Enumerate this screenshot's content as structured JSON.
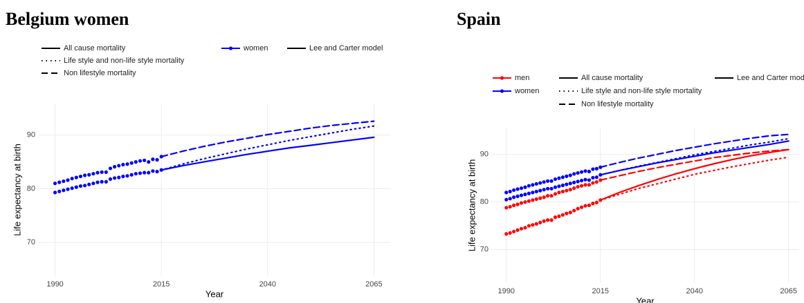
{
  "chart_data": [
    {
      "type": "line",
      "title": "Belgium women",
      "x_label": "Year",
      "y_label": "Life expectancy at birth",
      "xlim": [
        1986,
        2069
      ],
      "xticks": [
        1990,
        2015,
        2040,
        2065
      ],
      "ylim": [
        63.7,
        95.9
      ],
      "yticks": [
        70,
        80,
        90
      ],
      "grid": true,
      "x_observed": [
        1990,
        1991,
        1992,
        1993,
        1994,
        1995,
        1996,
        1997,
        1998,
        1999,
        2000,
        2001,
        2002,
        2003,
        2004,
        2005,
        2006,
        2007,
        2008,
        2009,
        2010,
        2011,
        2012,
        2013,
        2014,
        2015
      ],
      "x_projection": [
        2015,
        2020,
        2025,
        2030,
        2035,
        2040,
        2045,
        2050,
        2055,
        2060,
        2065
      ],
      "legend": {
        "linetypes": [
          {
            "name": "All cause mortality",
            "linetype": "solid"
          },
          {
            "name": "Life style and non-life style mortality",
            "linetype": "dotted"
          },
          {
            "name": "Non lifestyle mortality",
            "linetype": "dashed"
          }
        ],
        "colors": [
          {
            "name": "women",
            "color": "#0000ff"
          }
        ],
        "models": [
          {
            "name": "Lee and Carter model",
            "linetype": "solid"
          }
        ]
      },
      "series": [
        {
          "period": "observed",
          "linetype": "points",
          "color": "#0000ff",
          "values": [
            79.3,
            79.5,
            79.7,
            79.9,
            80.1,
            80.3,
            80.5,
            80.6,
            80.8,
            81.0,
            81.2,
            81.3,
            81.3,
            81.8,
            82.0,
            82.1,
            82.3,
            82.4,
            82.6,
            82.8,
            82.9,
            83.0,
            83.0,
            83.3,
            83.2,
            83.5
          ]
        },
        {
          "period": "observed",
          "linetype": "points",
          "color": "#0000ff",
          "values": [
            81.0,
            81.2,
            81.4,
            81.6,
            81.9,
            82.1,
            82.3,
            82.5,
            82.6,
            82.8,
            83.0,
            83.1,
            83.1,
            83.8,
            84.1,
            84.3,
            84.5,
            84.6,
            84.8,
            85.0,
            85.2,
            85.3,
            85.0,
            85.5,
            85.4,
            86.0
          ]
        },
        {
          "period": "projection",
          "linetype": "solid",
          "color": "#0000ff",
          "values": [
            83.5,
            84.3,
            85.0,
            85.7,
            86.4,
            87.0,
            87.6,
            88.1,
            88.6,
            89.1,
            89.6
          ]
        },
        {
          "period": "projection",
          "linetype": "dotted",
          "color": "#0000ff",
          "values": [
            83.5,
            84.6,
            85.6,
            86.5,
            87.4,
            88.2,
            89.0,
            89.7,
            90.4,
            91.1,
            91.7
          ]
        },
        {
          "period": "projection",
          "linetype": "dashed",
          "color": "#0000ff",
          "values": [
            86.0,
            87.0,
            87.9,
            88.7,
            89.4,
            90.1,
            90.7,
            91.3,
            91.8,
            92.2,
            92.6
          ]
        }
      ]
    },
    {
      "type": "line",
      "title": "Spain",
      "x_label": "Year",
      "y_label": "Life expectancy at birth",
      "xlim": [
        1986,
        2067.8
      ],
      "xticks": [
        1990,
        2015,
        2040,
        2065
      ],
      "ylim": [
        63,
        95.6
      ],
      "yticks": [
        70,
        80,
        90
      ],
      "grid": true,
      "x_observed": [
        1990,
        1991,
        1992,
        1993,
        1994,
        1995,
        1996,
        1997,
        1998,
        1999,
        2000,
        2001,
        2002,
        2003,
        2004,
        2005,
        2006,
        2007,
        2008,
        2009,
        2010,
        2011,
        2012,
        2013,
        2014,
        2015
      ],
      "x_projection": [
        2015,
        2020,
        2025,
        2030,
        2035,
        2040,
        2045,
        2050,
        2055,
        2060,
        2065
      ],
      "legend": {
        "colors": [
          {
            "name": "men",
            "color": "#ff0000"
          },
          {
            "name": "women",
            "color": "#0000ff"
          }
        ],
        "linetypes": [
          {
            "name": "All cause mortality",
            "linetype": "solid"
          },
          {
            "name": "Life style and non-life style mortality",
            "linetype": "dotted"
          },
          {
            "name": "Non lifestyle mortality",
            "linetype": "dashed"
          }
        ],
        "models": [
          {
            "name": "Lee and Carter mode",
            "linetype": "solid"
          }
        ]
      },
      "series": [
        {
          "period": "observed",
          "linetype": "points",
          "color": "#0000ff",
          "values": [
            80.5,
            80.7,
            81.0,
            81.2,
            81.4,
            81.6,
            81.8,
            82.0,
            82.2,
            82.4,
            82.6,
            82.8,
            82.8,
            83.1,
            83.3,
            83.5,
            83.7,
            83.9,
            84.1,
            84.3,
            84.5,
            84.7,
            84.6,
            85.1,
            85.2,
            85.7
          ]
        },
        {
          "period": "observed",
          "linetype": "points",
          "color": "#0000ff",
          "values": [
            82.0,
            82.2,
            82.5,
            82.7,
            82.9,
            83.1,
            83.4,
            83.6,
            83.8,
            84.0,
            84.2,
            84.4,
            84.4,
            84.8,
            85.0,
            85.2,
            85.4,
            85.6,
            85.9,
            86.1,
            86.3,
            86.5,
            86.4,
            86.9,
            87.0,
            87.3
          ]
        },
        {
          "period": "observed",
          "linetype": "points",
          "color": "#ff0000",
          "values": [
            73.3,
            73.5,
            73.8,
            74.1,
            74.4,
            74.6,
            75.0,
            75.2,
            75.4,
            75.7,
            76.0,
            76.2,
            76.2,
            76.8,
            77.0,
            77.3,
            77.6,
            77.8,
            78.2,
            78.6,
            78.9,
            79.2,
            79.3,
            79.7,
            79.9,
            80.4
          ]
        },
        {
          "period": "observed",
          "linetype": "points",
          "color": "#ff0000",
          "values": [
            78.8,
            79.0,
            79.3,
            79.5,
            79.8,
            80.0,
            80.2,
            80.4,
            80.6,
            80.8,
            81.0,
            81.3,
            81.3,
            81.7,
            82.0,
            82.2,
            82.4,
            82.6,
            82.9,
            83.2,
            83.4,
            83.6,
            83.6,
            84.0,
            84.2,
            84.6
          ]
        },
        {
          "period": "projection",
          "linetype": "solid",
          "color": "#0000ff",
          "values": [
            85.7,
            86.6,
            87.4,
            88.2,
            88.9,
            89.6,
            90.3,
            90.9,
            91.5,
            92.1,
            92.8
          ]
        },
        {
          "period": "projection",
          "linetype": "dotted",
          "color": "#0000ff",
          "values": [
            85.7,
            86.6,
            87.5,
            88.3,
            89.1,
            89.9,
            90.6,
            91.3,
            92.0,
            92.6,
            93.3
          ]
        },
        {
          "period": "projection",
          "linetype": "dashed",
          "color": "#0000ff",
          "values": [
            87.3,
            88.3,
            89.2,
            90.0,
            90.8,
            91.5,
            92.2,
            92.8,
            93.4,
            93.9,
            94.2
          ]
        },
        {
          "period": "projection",
          "linetype": "solid",
          "color": "#ff0000",
          "values": [
            80.4,
            82.0,
            83.4,
            84.7,
            85.9,
            87.0,
            88.0,
            88.9,
            89.7,
            90.4,
            91.0
          ]
        },
        {
          "period": "projection",
          "linetype": "dotted",
          "color": "#ff0000",
          "values": [
            80.4,
            81.6,
            82.8,
            83.8,
            84.8,
            85.8,
            86.6,
            87.4,
            88.1,
            88.8,
            89.4
          ]
        },
        {
          "period": "projection",
          "linetype": "dashed",
          "color": "#ff0000",
          "values": [
            84.6,
            85.5,
            86.4,
            87.2,
            87.9,
            88.6,
            89.3,
            89.8,
            90.3,
            90.7,
            91.0
          ]
        }
      ]
    }
  ]
}
